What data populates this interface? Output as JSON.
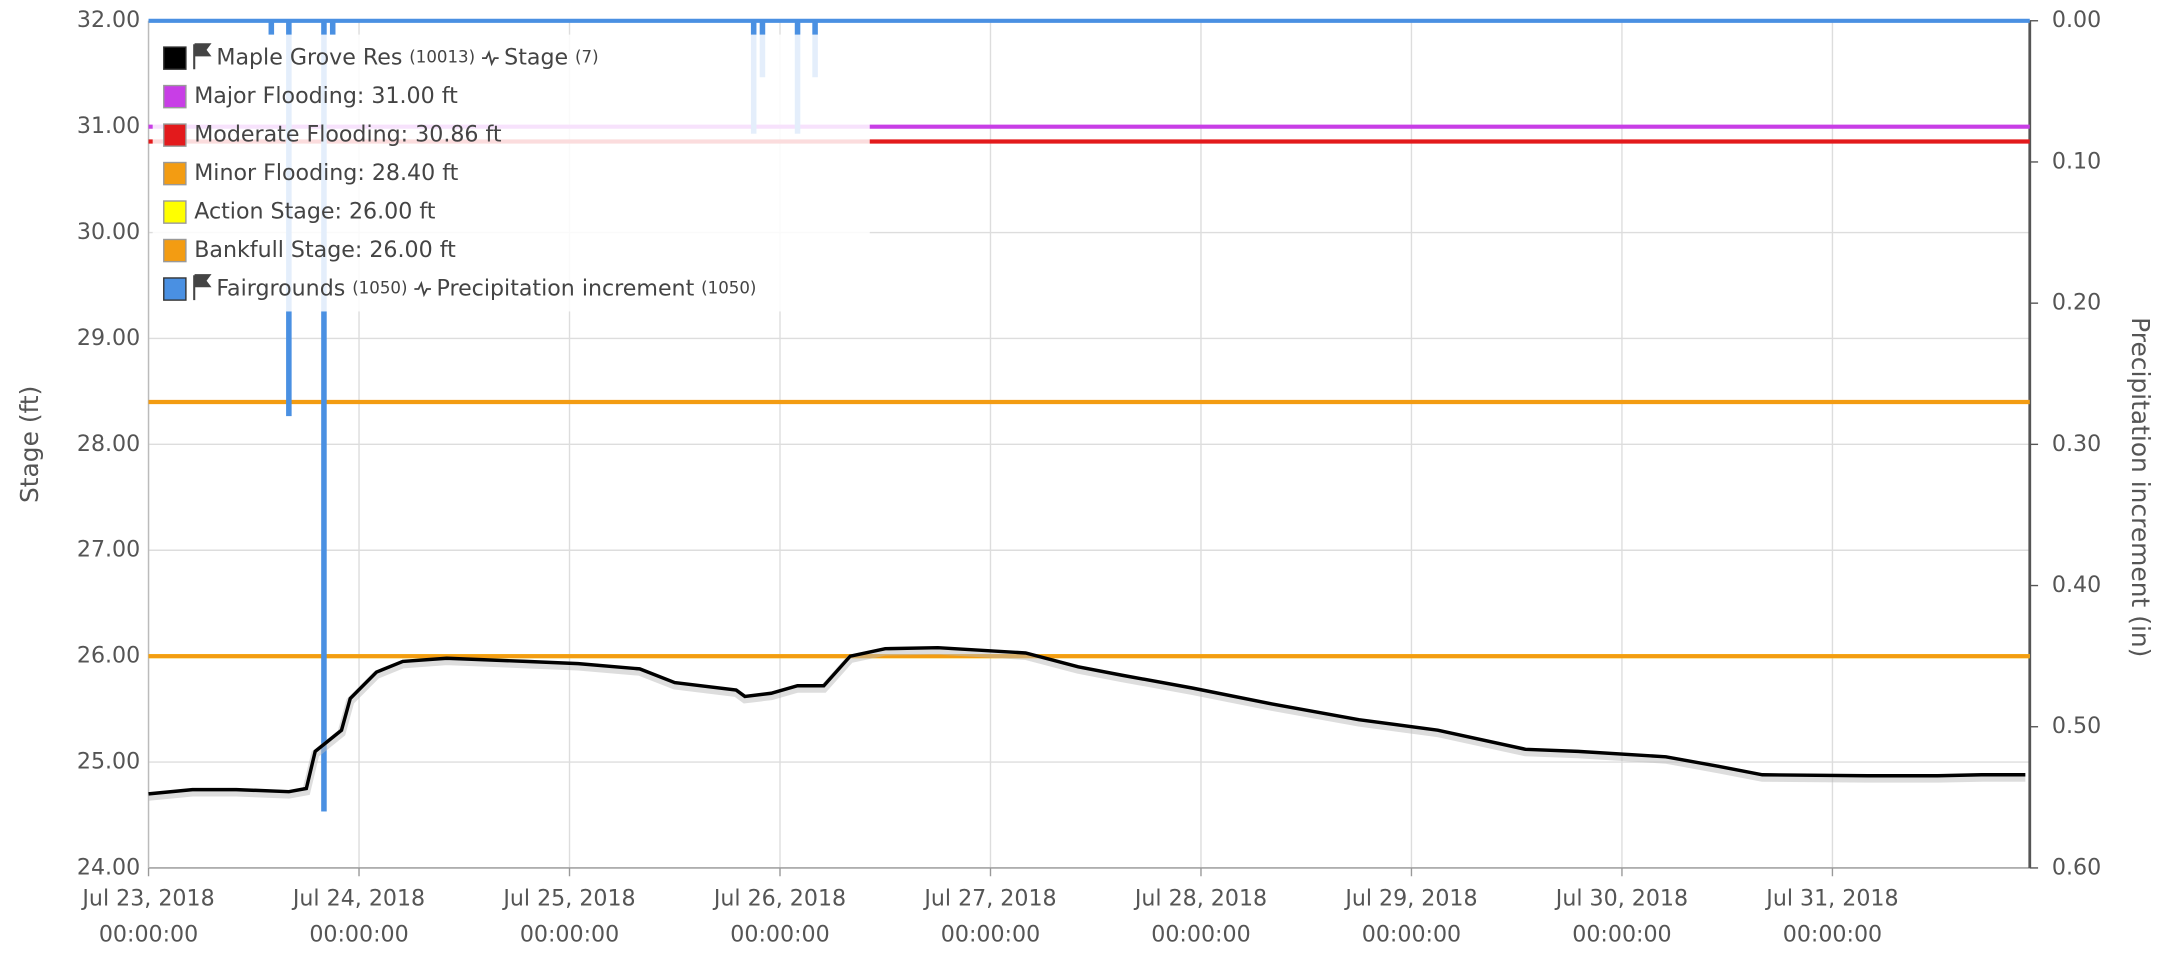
{
  "chart_data": {
    "type": "line",
    "y_label": "Stage (ft)",
    "y2_label": "Precipitation increment (in)",
    "xlim": [
      "2018-07-23T00:00",
      "2018-07-31T22:30"
    ],
    "xticks": [
      {
        "value": "2018-07-23T00:00",
        "label": "Jul 23, 2018 00:00:00"
      },
      {
        "value": "2018-07-24T00:00",
        "label": "Jul 24, 2018 00:00:00"
      },
      {
        "value": "2018-07-25T00:00",
        "label": "Jul 25, 2018 00:00:00"
      },
      {
        "value": "2018-07-26T00:00",
        "label": "Jul 26, 2018 00:00:00"
      },
      {
        "value": "2018-07-27T00:00",
        "label": "Jul 27, 2018 00:00:00"
      },
      {
        "value": "2018-07-28T00:00",
        "label": "Jul 28, 2018 00:00:00"
      },
      {
        "value": "2018-07-29T00:00",
        "label": "Jul 29, 2018 00:00:00"
      },
      {
        "value": "2018-07-30T00:00",
        "label": "Jul 30, 2018 00:00:00"
      },
      {
        "value": "2018-07-31T00:00",
        "label": "Jul 31, 2018 00:00:00"
      }
    ],
    "ylim": [
      24,
      32
    ],
    "yticks": [
      {
        "value": 24,
        "label": "24.00"
      },
      {
        "value": 25,
        "label": "25.00"
      },
      {
        "value": 26,
        "label": "26.00"
      },
      {
        "value": 27,
        "label": "27.00"
      },
      {
        "value": 28,
        "label": "28.00"
      },
      {
        "value": 29,
        "label": "29.00"
      },
      {
        "value": 30,
        "label": "30.00"
      },
      {
        "value": 31,
        "label": "31.00"
      },
      {
        "value": 32,
        "label": "32.00"
      }
    ],
    "y2lim": [
      0.6,
      0
    ],
    "y2ticks": [
      {
        "value": 0,
        "label": "0.00"
      },
      {
        "value": 0.1,
        "label": "0.10"
      },
      {
        "value": 0.2,
        "label": "0.20"
      },
      {
        "value": 0.3,
        "label": "0.30"
      },
      {
        "value": 0.4,
        "label": "0.40"
      },
      {
        "value": 0.5,
        "label": "0.50"
      },
      {
        "value": 0.6,
        "label": "0.60"
      }
    ],
    "grid": true,
    "legend": "upper left",
    "series": [
      {
        "name": "Maple Grove Res",
        "site_id": "(10013)",
        "parameter": "Stage",
        "parameter_id": "(7)",
        "color": "#000000",
        "x": [
          "2018-07-23T00:00",
          "2018-07-23T05:00",
          "2018-07-23T10:00",
          "2018-07-23T16:00",
          "2018-07-23T18:00",
          "2018-07-23T19:00",
          "2018-07-23T22:00",
          "2018-07-23T23:00",
          "2018-07-24T02:00",
          "2018-07-24T05:00",
          "2018-07-24T10:00",
          "2018-07-24T19:00",
          "2018-07-25T01:00",
          "2018-07-25T08:00",
          "2018-07-25T12:00",
          "2018-07-25T19:00",
          "2018-07-25T20:00",
          "2018-07-25T23:00",
          "2018-07-26T02:00",
          "2018-07-26T05:00",
          "2018-07-26T08:00",
          "2018-07-26T12:00",
          "2018-07-26T18:00",
          "2018-07-27T04:00",
          "2018-07-27T10:00",
          "2018-07-27T15:00",
          "2018-07-27T23:00",
          "2018-07-28T08:00",
          "2018-07-28T18:00",
          "2018-07-29T03:00",
          "2018-07-29T13:00",
          "2018-07-29T19:00",
          "2018-07-30T05:00",
          "2018-07-30T11:00",
          "2018-07-30T16:00",
          "2018-07-31T04:00",
          "2018-07-31T12:00",
          "2018-07-31T17:00",
          "2018-07-31T22:00"
        ],
        "values": [
          24.7,
          24.74,
          24.74,
          24.72,
          24.75,
          25.1,
          25.3,
          25.6,
          25.85,
          25.95,
          25.98,
          25.95,
          25.93,
          25.88,
          25.75,
          25.68,
          25.62,
          25.65,
          25.72,
          25.72,
          26.0,
          26.07,
          26.08,
          26.03,
          25.9,
          25.82,
          25.7,
          25.55,
          25.4,
          25.3,
          25.12,
          25.1,
          25.05,
          24.96,
          24.88,
          24.87,
          24.87,
          24.88,
          24.88
        ]
      },
      {
        "name": "Fairgrounds",
        "site_id": "(1050)",
        "parameter": "Precipitation increment",
        "parameter_id": "(1050)",
        "color": "#4a90e2",
        "type": "bar",
        "axis": "y2",
        "x": [
          "2018-07-23T14:00",
          "2018-07-23T16:00",
          "2018-07-23T20:00",
          "2018-07-23T21:00",
          "2018-07-25T21:00",
          "2018-07-25T22:00",
          "2018-07-26T02:00",
          "2018-07-26T04:00"
        ],
        "values": [
          0.01,
          0.28,
          0.56,
          0.01,
          0.08,
          0.04,
          0.08,
          0.04
        ]
      }
    ],
    "thresholds": [
      {
        "name": "Major Flooding: 31.00 ft",
        "value": 31,
        "color": "#c83ee6"
      },
      {
        "name": "Moderate Flooding: 30.86 ft",
        "value": 30.86,
        "color": "#e31a1c"
      },
      {
        "name": "Minor Flooding: 28.40 ft",
        "value": 28.4,
        "color": "#f39c12"
      },
      {
        "name": "Action Stage: 26.00 ft",
        "value": 26,
        "color": "#ffff00"
      },
      {
        "name": "Bankfull Stage: 26.00 ft",
        "value": 26,
        "color": "#f39c12"
      }
    ]
  }
}
